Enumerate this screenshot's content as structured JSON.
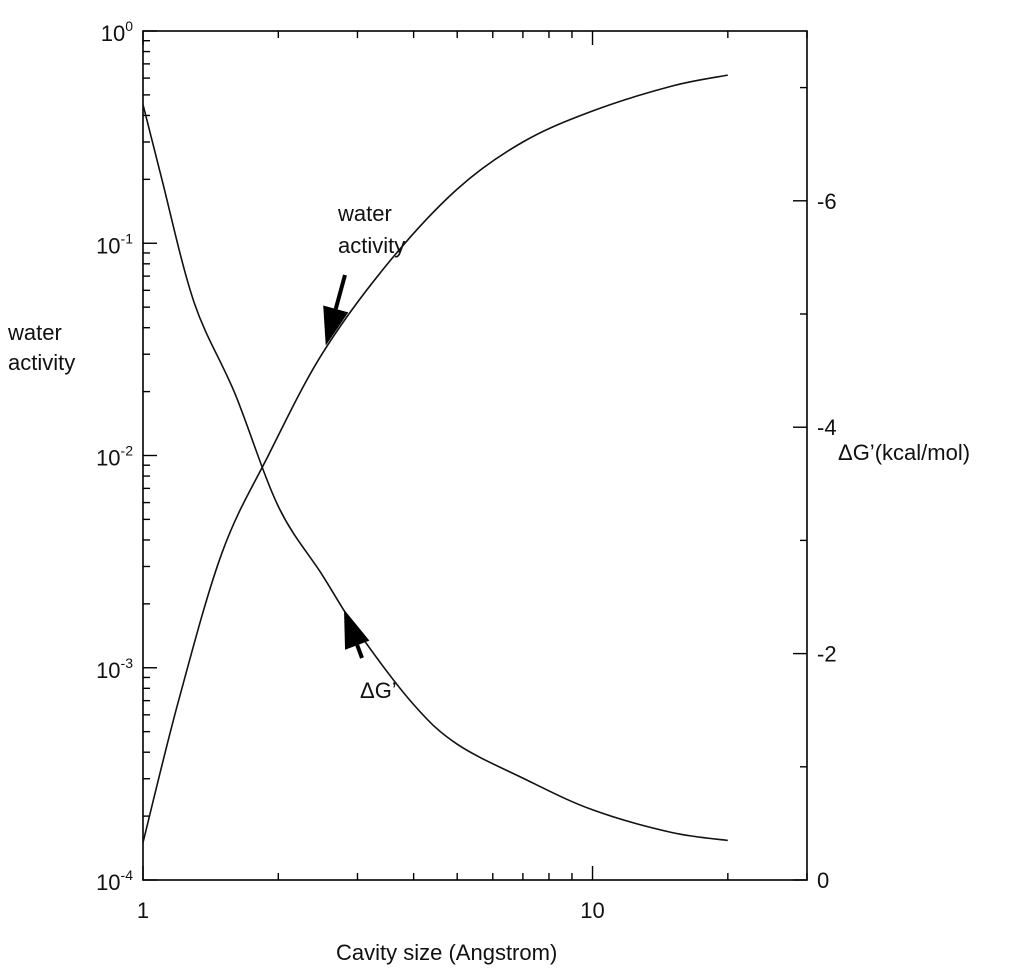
{
  "chart_data": {
    "type": "line",
    "title": "",
    "xlabel": "Cavity size (Angstrom)",
    "ylabel_left": "water activity",
    "ylabel_right": "ΔG’(kcal/mol)",
    "x_scale": "log",
    "xlim": [
      1,
      30
    ],
    "x_ticks": [
      1,
      10
    ],
    "x_tick_labels": [
      "1",
      "10"
    ],
    "y_left_scale": "log",
    "y_left_lim": [
      0.0001,
      1
    ],
    "y_left_ticks": [
      {
        "base": "10",
        "exp": "-4"
      },
      {
        "base": "10",
        "exp": "-3"
      },
      {
        "base": "10",
        "exp": "-2"
      },
      {
        "base": "10",
        "exp": "-1"
      },
      {
        "base": "10",
        "exp": "0"
      }
    ],
    "y_right_lim": [
      0,
      -7.5
    ],
    "y_right_ticks": [
      0,
      -2,
      -4,
      -6
    ],
    "y_right_tick_labels": [
      "0",
      "-2",
      "-4",
      "-6"
    ],
    "grid": false,
    "series": [
      {
        "name": "water activity",
        "axis": "left",
        "x": [
          1.0,
          1.2,
          1.5,
          1.9,
          2.5,
          3.5,
          5.0,
          7.0,
          10.0,
          15.0,
          20.0
        ],
        "y": [
          0.00015,
          0.0007,
          0.0035,
          0.01,
          0.03,
          0.08,
          0.18,
          0.3,
          0.42,
          0.55,
          0.62
        ]
      },
      {
        "name": "ΔG’",
        "axis": "right",
        "x": [
          1.0,
          1.1,
          1.3,
          1.6,
          2.0,
          2.5,
          3.0,
          4.0,
          5.0,
          7.0,
          10.0,
          15.0,
          20.0
        ],
        "y": [
          -6.85,
          -6.2,
          -5.1,
          -4.3,
          -3.3,
          -2.7,
          -2.2,
          -1.55,
          -1.2,
          -0.9,
          -0.62,
          -0.42,
          -0.35
        ]
      }
    ],
    "annotations": [
      {
        "text_lines": [
          "water",
          "activity"
        ],
        "points_to_x": 2.55,
        "points_to_series": "water activity"
      },
      {
        "text_lines": [
          "ΔG’"
        ],
        "points_to_x": 2.8,
        "points_to_series": "ΔG’"
      }
    ]
  }
}
